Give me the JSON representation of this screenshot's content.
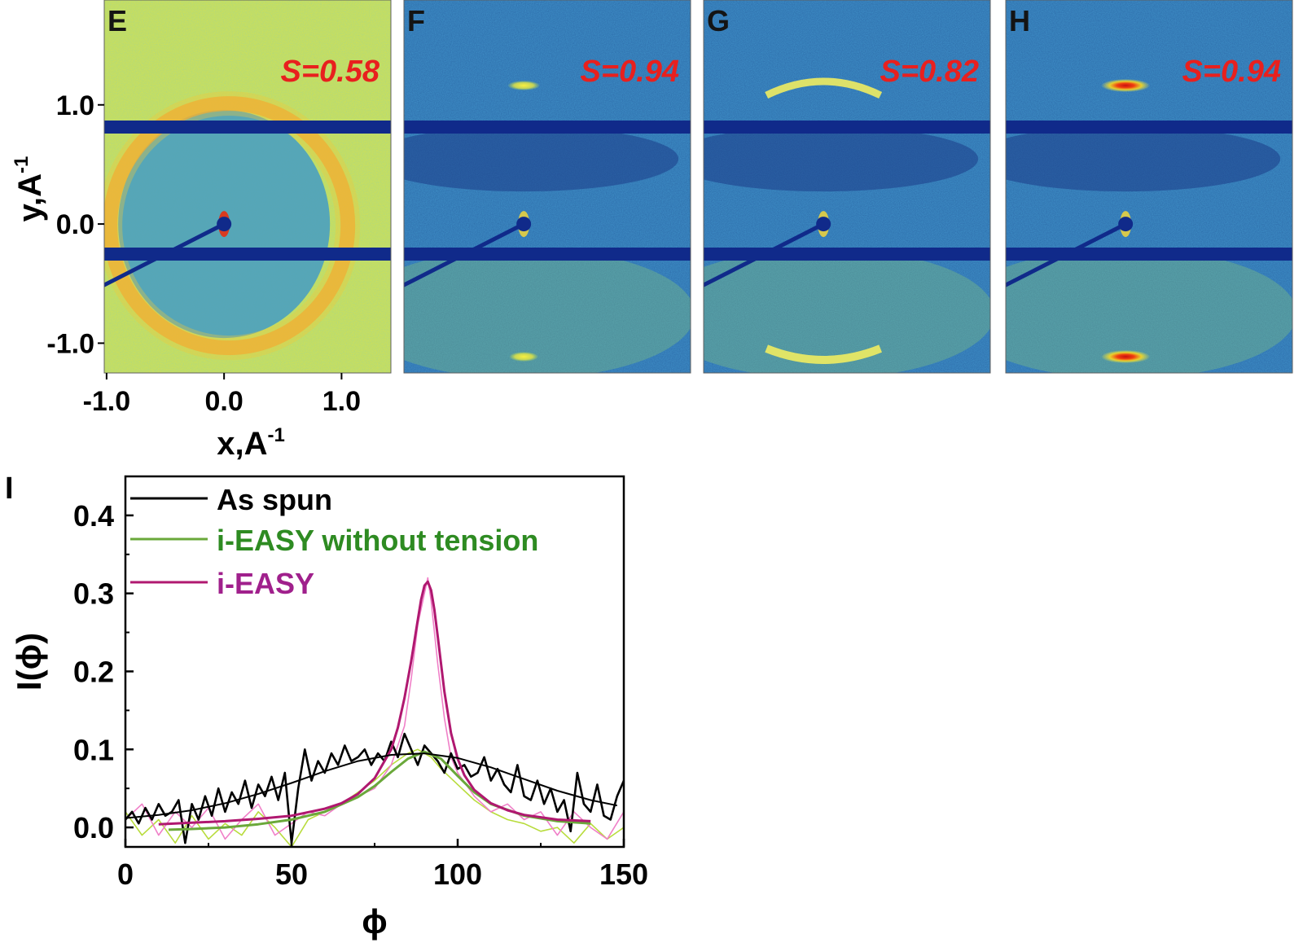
{
  "panels": [
    {
      "letter": "E",
      "s_label": "S=0.58",
      "scheme": "yellow",
      "pattern": "ring"
    },
    {
      "letter": "F",
      "s_label": "S=0.94",
      "scheme": "blue",
      "pattern": "small-spot"
    },
    {
      "letter": "G",
      "s_label": "S=0.82",
      "scheme": "blue",
      "pattern": "wide-arc"
    },
    {
      "letter": "H",
      "s_label": "S=0.94",
      "scheme": "blue",
      "pattern": "red-spot"
    }
  ],
  "image_axes": {
    "ylabel": "y,A",
    "ylabel_sup": "-1",
    "xlabel": "x,A",
    "xlabel_sup": "-1",
    "yticks": [
      1.0,
      0.0,
      -1.0
    ],
    "ytick_labels": [
      "1.0",
      "0.0",
      "-1.0"
    ],
    "xticks": [
      -1.0,
      0.0,
      1.0
    ],
    "xtick_labels": [
      "-1.0",
      "0.0",
      "1.0"
    ],
    "xlim": [
      -1.02,
      1.42
    ],
    "ylim": [
      -1.25,
      1.88
    ]
  },
  "colors": {
    "as_spun": "#000000",
    "without_tension": "#6aa83a",
    "without_tension_raw": "#b8dc3c",
    "i_easy": "#b01870",
    "i_easy_raw": "#f080c8",
    "s_label": "#e8201e",
    "legend_green_text": "#2e8b22",
    "legend_magenta_text": "#a0208c",
    "beamstop": "#102a8a"
  },
  "chart_data": {
    "type": "line",
    "panel_letter": "I",
    "xlabel": "ϕ",
    "ylabel": "I(ϕ)",
    "xlim": [
      0,
      150
    ],
    "ylim": [
      -0.025,
      0.45
    ],
    "xticks": [
      0,
      50,
      100,
      150
    ],
    "yticks": [
      0.0,
      0.1,
      0.2,
      0.3,
      0.4
    ],
    "ytick_labels": [
      "0.0",
      "0.1",
      "0.2",
      "0.3",
      "0.4"
    ],
    "legend_position": "top-left",
    "series": [
      {
        "name": "As spun",
        "raw": {
          "x": [
            0,
            2,
            4,
            6,
            8,
            10,
            12,
            14,
            16,
            18,
            20,
            22,
            24,
            26,
            28,
            30,
            32,
            34,
            36,
            38,
            40,
            42,
            44,
            46,
            48,
            50,
            52,
            54,
            56,
            58,
            60,
            62,
            64,
            66,
            68,
            70,
            72,
            74,
            76,
            78,
            80,
            82,
            84,
            86,
            88,
            90,
            92,
            94,
            96,
            98,
            100,
            102,
            104,
            106,
            108,
            110,
            112,
            114,
            116,
            118,
            120,
            122,
            124,
            126,
            128,
            130,
            132,
            134,
            136,
            138,
            140,
            142,
            144,
            146,
            148,
            150
          ],
          "y": [
            0.01,
            0.02,
            0.005,
            0.025,
            0.01,
            0.03,
            0.015,
            0.02,
            0.035,
            -0.02,
            0.03,
            0.01,
            0.04,
            0.015,
            0.05,
            0.02,
            0.045,
            0.03,
            0.06,
            0.025,
            0.055,
            0.04,
            0.065,
            0.035,
            0.07,
            -0.02,
            0.05,
            0.1,
            0.06,
            0.085,
            0.07,
            0.095,
            0.08,
            0.105,
            0.085,
            0.09,
            0.1,
            0.08,
            0.095,
            0.085,
            0.11,
            0.09,
            0.12,
            0.1,
            0.08,
            0.105,
            0.095,
            0.085,
            0.07,
            0.095,
            0.075,
            0.08,
            0.065,
            0.07,
            0.09,
            0.06,
            0.075,
            0.055,
            0.045,
            0.08,
            0.04,
            0.035,
            0.06,
            0.03,
            0.05,
            0.02,
            0.035,
            -0.005,
            0.07,
            0.03,
            0.02,
            0.055,
            0.015,
            0.01,
            0.04,
            0.06
          ]
        },
        "fit": {
          "x": [
            0,
            10,
            20,
            30,
            40,
            50,
            60,
            70,
            80,
            90,
            100,
            110,
            120,
            130,
            140,
            148
          ],
          "y": [
            0.012,
            0.016,
            0.022,
            0.031,
            0.043,
            0.057,
            0.072,
            0.085,
            0.093,
            0.095,
            0.089,
            0.077,
            0.062,
            0.047,
            0.035,
            0.028
          ]
        }
      },
      {
        "name": "i-EASY without tension",
        "raw": {
          "x": [
            0,
            5,
            10,
            15,
            20,
            25,
            30,
            35,
            40,
            45,
            50,
            55,
            60,
            65,
            70,
            75,
            80,
            85,
            88,
            90,
            92,
            95,
            100,
            105,
            110,
            115,
            120,
            125,
            130,
            135,
            140,
            145,
            150
          ],
          "y": [
            0.02,
            -0.01,
            0.01,
            -0.02,
            0.015,
            -0.015,
            0.005,
            -0.01,
            0.02,
            0.0,
            -0.025,
            0.01,
            0.02,
            0.03,
            0.045,
            0.06,
            0.08,
            0.095,
            0.1,
            0.095,
            0.09,
            0.075,
            0.055,
            0.035,
            0.02,
            0.01,
            0.005,
            -0.005,
            0.0,
            -0.02,
            0.005,
            -0.015,
            0.0
          ]
        },
        "fit": {
          "x": [
            13,
            20,
            30,
            40,
            50,
            60,
            70,
            75,
            80,
            85,
            90,
            95,
            100,
            105,
            110,
            120,
            130,
            140
          ],
          "y": [
            -0.003,
            -0.002,
            0.0,
            0.004,
            0.01,
            0.02,
            0.039,
            0.053,
            0.071,
            0.088,
            0.097,
            0.088,
            0.066,
            0.045,
            0.03,
            0.015,
            0.008,
            0.005
          ]
        }
      },
      {
        "name": "i-EASY",
        "raw": {
          "x": [
            0,
            5,
            10,
            15,
            20,
            25,
            30,
            35,
            40,
            45,
            50,
            55,
            60,
            65,
            70,
            75,
            80,
            84,
            86,
            88,
            90,
            91,
            92,
            94,
            96,
            98,
            100,
            105,
            110,
            115,
            120,
            125,
            130,
            135,
            140,
            145,
            150
          ],
          "y": [
            0.01,
            0.03,
            -0.01,
            0.02,
            0.0,
            0.025,
            -0.015,
            0.01,
            0.03,
            -0.01,
            0.005,
            0.02,
            0.015,
            0.03,
            0.04,
            0.05,
            0.08,
            0.13,
            0.19,
            0.26,
            0.3,
            0.32,
            0.29,
            0.21,
            0.14,
            0.09,
            0.07,
            0.04,
            0.02,
            0.03,
            0.01,
            0.02,
            -0.01,
            0.02,
            0.0,
            -0.015,
            0.02
          ]
        },
        "fit": {
          "x": [
            10,
            20,
            30,
            40,
            50,
            60,
            65,
            70,
            75,
            80,
            82,
            84,
            86,
            88,
            89,
            90,
            91,
            92,
            93,
            94,
            96,
            98,
            100,
            102,
            105,
            110,
            115,
            120,
            130,
            140
          ],
          "y": [
            0.004,
            0.006,
            0.008,
            0.011,
            0.015,
            0.024,
            0.031,
            0.043,
            0.063,
            0.1,
            0.128,
            0.166,
            0.213,
            0.266,
            0.292,
            0.31,
            0.315,
            0.304,
            0.279,
            0.245,
            0.174,
            0.121,
            0.088,
            0.067,
            0.048,
            0.031,
            0.022,
            0.016,
            0.01,
            0.008
          ]
        }
      }
    ]
  }
}
